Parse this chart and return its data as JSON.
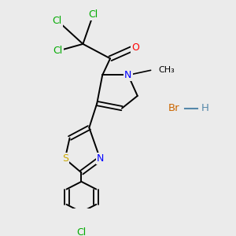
{
  "bg_color": "#ebebeb",
  "atom_colors": {
    "C": "#000000",
    "Cl": "#00aa00",
    "O": "#ff0000",
    "N": "#0000ff",
    "S": "#ccaa00",
    "Br": "#cc6600",
    "H": "#5588aa"
  }
}
